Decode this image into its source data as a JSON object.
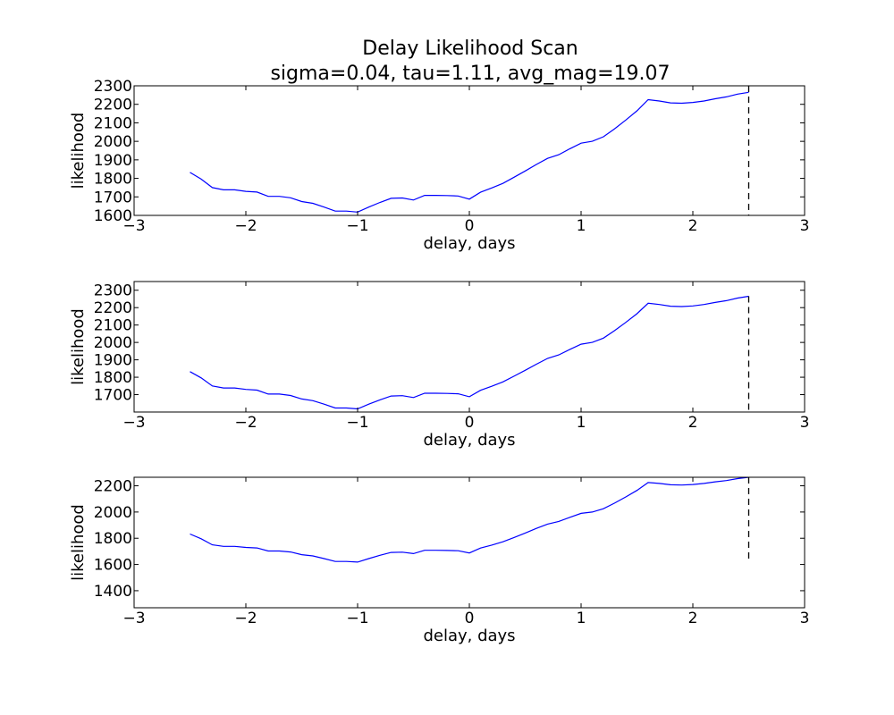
{
  "title": "Delay Likelihood Scan",
  "subtitle": "sigma=0.04, tau=1.11, avg_mag=19.07",
  "colors": {
    "series": "#0000ff",
    "marker": "#000000",
    "axes": "#000000"
  },
  "chart_data": [
    {
      "type": "line",
      "xlabel": "delay, days",
      "ylabel": "likelihood",
      "xlim": [
        -3,
        3
      ],
      "ylim": [
        1600,
        2300
      ],
      "xticks": [
        -3,
        -2,
        -1,
        0,
        1,
        2,
        3
      ],
      "xtick_labels": [
        "−3",
        "−2",
        "−1",
        "0",
        "1",
        "2",
        "3"
      ],
      "yticks": [
        1600,
        1700,
        1800,
        1900,
        2000,
        2100,
        2200,
        2300
      ],
      "ytick_labels": [
        "1600",
        "1700",
        "1800",
        "1900",
        "2000",
        "2100",
        "2200",
        "2300"
      ],
      "marker_x": 2.5,
      "marker_y_range": [
        1600,
        2300
      ],
      "x": [
        -2.5,
        -2.4,
        -2.3,
        -2.2,
        -2.1,
        -2.0,
        -1.9,
        -1.8,
        -1.7,
        -1.6,
        -1.5,
        -1.4,
        -1.3,
        -1.2,
        -1.1,
        -1.0,
        -0.9,
        -0.8,
        -0.7,
        -0.6,
        -0.5,
        -0.4,
        -0.3,
        -0.2,
        -0.1,
        0.0,
        0.1,
        0.2,
        0.3,
        0.4,
        0.5,
        0.6,
        0.7,
        0.8,
        0.9,
        1.0,
        1.1,
        1.2,
        1.3,
        1.4,
        1.5,
        1.6,
        1.7,
        1.8,
        1.9,
        2.0,
        2.1,
        2.2,
        2.3,
        2.4,
        2.5
      ],
      "y": [
        1832,
        1796,
        1750,
        1738,
        1738,
        1730,
        1726,
        1703,
        1703,
        1695,
        1675,
        1665,
        1645,
        1623,
        1623,
        1618,
        1645,
        1670,
        1692,
        1694,
        1683,
        1708,
        1708,
        1707,
        1705,
        1688,
        1725,
        1748,
        1773,
        1806,
        1840,
        1875,
        1908,
        1928,
        1960,
        1990,
        2000,
        2025,
        2068,
        2115,
        2165,
        2225,
        2218,
        2208,
        2206,
        2210,
        2218,
        2230,
        2240,
        2255,
        2265
      ]
    },
    {
      "type": "line",
      "xlabel": "delay, days",
      "ylabel": "likelihood",
      "xlim": [
        -3,
        3
      ],
      "ylim": [
        1600,
        2350
      ],
      "xticks": [
        -3,
        -2,
        -1,
        0,
        1,
        2,
        3
      ],
      "xtick_labels": [
        "−3",
        "−2",
        "−1",
        "0",
        "1",
        "2",
        "3"
      ],
      "yticks": [
        1700,
        1800,
        1900,
        2000,
        2100,
        2200,
        2300
      ],
      "ytick_labels": [
        "1700",
        "1800",
        "1900",
        "2000",
        "2100",
        "2200",
        "2300"
      ],
      "marker_x": 2.5,
      "marker_y_range": [
        1600,
        2265
      ],
      "x": [
        -2.5,
        -2.4,
        -2.3,
        -2.2,
        -2.1,
        -2.0,
        -1.9,
        -1.8,
        -1.7,
        -1.6,
        -1.5,
        -1.4,
        -1.3,
        -1.2,
        -1.1,
        -1.0,
        -0.9,
        -0.8,
        -0.7,
        -0.6,
        -0.5,
        -0.4,
        -0.3,
        -0.2,
        -0.1,
        0.0,
        0.1,
        0.2,
        0.3,
        0.4,
        0.5,
        0.6,
        0.7,
        0.8,
        0.9,
        1.0,
        1.1,
        1.2,
        1.3,
        1.4,
        1.5,
        1.6,
        1.7,
        1.8,
        1.9,
        2.0,
        2.1,
        2.2,
        2.3,
        2.4,
        2.5
      ],
      "y": [
        1832,
        1796,
        1750,
        1738,
        1738,
        1730,
        1726,
        1703,
        1703,
        1695,
        1675,
        1665,
        1645,
        1623,
        1623,
        1618,
        1645,
        1670,
        1692,
        1694,
        1683,
        1708,
        1708,
        1707,
        1705,
        1688,
        1725,
        1748,
        1773,
        1806,
        1840,
        1875,
        1908,
        1928,
        1960,
        1990,
        2000,
        2025,
        2068,
        2115,
        2165,
        2225,
        2218,
        2208,
        2206,
        2210,
        2218,
        2230,
        2240,
        2255,
        2265
      ]
    },
    {
      "type": "line",
      "xlabel": "delay, days",
      "ylabel": "likelihood",
      "xlim": [
        -3,
        3
      ],
      "ylim": [
        1270,
        2265
      ],
      "xticks": [
        -3,
        -2,
        -1,
        0,
        1,
        2,
        3
      ],
      "xtick_labels": [
        "−3",
        "−2",
        "−1",
        "0",
        "1",
        "2",
        "3"
      ],
      "yticks": [
        1400,
        1600,
        1800,
        2000,
        2200
      ],
      "ytick_labels": [
        "1400",
        "1600",
        "1800",
        "2000",
        "2200"
      ],
      "marker_x": 2.5,
      "marker_y_range": [
        1618,
        2265
      ],
      "x": [
        -2.5,
        -2.4,
        -2.3,
        -2.2,
        -2.1,
        -2.0,
        -1.9,
        -1.8,
        -1.7,
        -1.6,
        -1.5,
        -1.4,
        -1.3,
        -1.2,
        -1.1,
        -1.0,
        -0.9,
        -0.8,
        -0.7,
        -0.6,
        -0.5,
        -0.4,
        -0.3,
        -0.2,
        -0.1,
        0.0,
        0.1,
        0.2,
        0.3,
        0.4,
        0.5,
        0.6,
        0.7,
        0.8,
        0.9,
        1.0,
        1.1,
        1.2,
        1.3,
        1.4,
        1.5,
        1.6,
        1.7,
        1.8,
        1.9,
        2.0,
        2.1,
        2.2,
        2.3,
        2.4,
        2.5
      ],
      "y": [
        1832,
        1796,
        1750,
        1738,
        1738,
        1730,
        1726,
        1703,
        1703,
        1695,
        1675,
        1665,
        1645,
        1623,
        1623,
        1618,
        1645,
        1670,
        1692,
        1694,
        1683,
        1708,
        1708,
        1707,
        1705,
        1688,
        1725,
        1748,
        1773,
        1806,
        1840,
        1875,
        1908,
        1928,
        1960,
        1990,
        2000,
        2025,
        2068,
        2115,
        2165,
        2225,
        2218,
        2208,
        2206,
        2210,
        2218,
        2230,
        2240,
        2255,
        2265
      ]
    }
  ]
}
